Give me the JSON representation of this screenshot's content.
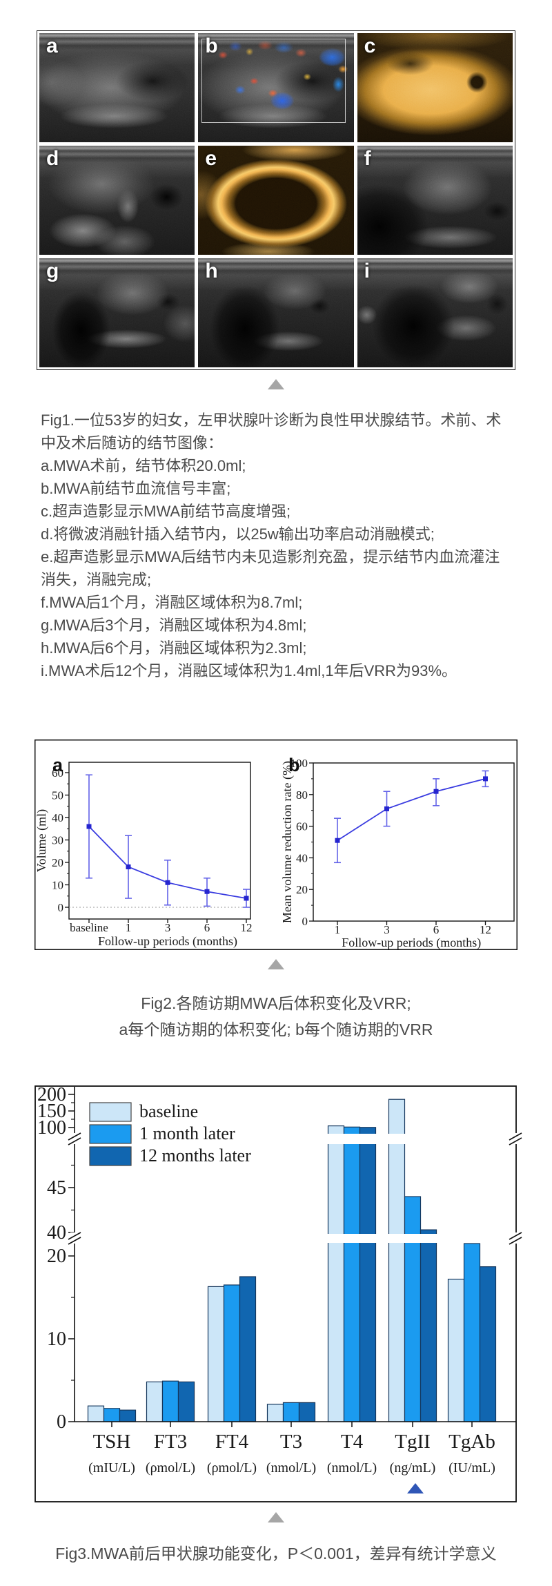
{
  "fig1": {
    "panels": [
      {
        "label": "a",
        "kind": "grayscale-ultrasound"
      },
      {
        "label": "b",
        "kind": "color-doppler-ultrasound"
      },
      {
        "label": "c",
        "kind": "contrast-enhanced-ultrasound-bright"
      },
      {
        "label": "d",
        "kind": "grayscale-ultrasound-ablation-needle"
      },
      {
        "label": "e",
        "kind": "contrast-enhanced-ultrasound-rim"
      },
      {
        "label": "f",
        "kind": "grayscale-ultrasound"
      },
      {
        "label": "g",
        "kind": "grayscale-ultrasound"
      },
      {
        "label": "h",
        "kind": "grayscale-ultrasound"
      },
      {
        "label": "i",
        "kind": "grayscale-ultrasound"
      }
    ],
    "caption_lines": [
      "Fig1.一位53岁的妇女，左甲状腺叶诊断为良性甲状腺结节。术前、术中及术后随访的结节图像：",
      "a.MWA术前，结节体积20.0ml;",
      "b.MWA前结节血流信号丰富;",
      "c.超声造影显示MWA前结节高度增强;",
      "d.将微波消融针插入结节内，以25w输出功率启动消融模式;",
      "e.超声造影显示MWA后结节内未见造影剂充盈，提示结节内血流灌注消失，消融完成;",
      "f.MWA后1个月，消融区域体积为8.7ml;",
      "g.MWA后3个月，消融区域体积为4.8ml;",
      "h.MWA后6个月，消融区域体积为2.3ml;",
      "i.MWA术后12个月，消融区域体积为1.4ml,1年后VRR为93%。"
    ]
  },
  "fig2": {
    "caption_lines": [
      "Fig2.各随访期MWA后体积变化及VRR;",
      "a每个随访期的体积变化; b每个随访期的VRR"
    ]
  },
  "fig3": {
    "caption": "Fig3.MWA前后甲状腺功能变化，P＜0.001，差异有统计学意义"
  },
  "separator": {
    "icon": "triangle-up",
    "color": "#a6a6a6"
  },
  "chart_data": [
    {
      "type": "line",
      "panel_label": "a",
      "title": "",
      "xlabel": "Follow-up periods (months)",
      "ylabel": "Volume (ml)",
      "categories": [
        "baseline",
        "1",
        "3",
        "6",
        "12"
      ],
      "values": [
        36,
        18,
        11,
        7,
        4
      ],
      "error_low": [
        13,
        4,
        1,
        0.5,
        0
      ],
      "error_high": [
        59,
        32,
        21,
        13,
        8
      ],
      "yticks": [
        0,
        10,
        20,
        30,
        40,
        50,
        60
      ],
      "yticks_minor": [
        5,
        15,
        25,
        35,
        45,
        55
      ],
      "ylim": [
        -5,
        65
      ],
      "zero_line": true,
      "line_color": "#3a3ce0",
      "error_color": "#6262e8",
      "marker_color": "#2525cf",
      "marker": "square"
    },
    {
      "type": "line",
      "panel_label": "b",
      "title": "",
      "xlabel": "Follow-up periods (months)",
      "ylabel": "Mean volume reduction rate (%)",
      "categories": [
        "1",
        "3",
        "6",
        "12"
      ],
      "values": [
        51,
        71,
        82,
        90
      ],
      "error_low": [
        37,
        60,
        73,
        85
      ],
      "error_high": [
        65,
        82,
        90,
        95
      ],
      "yticks": [
        0,
        20,
        40,
        60,
        80,
        100
      ],
      "yticks_minor": [
        10,
        30,
        50,
        70,
        90
      ],
      "ylim": [
        0,
        100
      ],
      "zero_line": false,
      "line_color": "#3a3ce0",
      "error_color": "#6262e8",
      "marker_color": "#2525cf",
      "marker": "square"
    },
    {
      "type": "bar",
      "broken_axis": true,
      "categories": [
        "TSH",
        "FT3",
        "FT4",
        "T3",
        "T4",
        "TgII",
        "TgAb"
      ],
      "category_units": [
        "(mIU/L)",
        "(ρmol/L)",
        "(ρmol/L)",
        "(nmol/L)",
        "(nmol/L)",
        "(ng/mL)",
        "(IU/mL)"
      ],
      "series": [
        {
          "name": "baseline",
          "color": "#cce6f8",
          "values": [
            1.9,
            4.8,
            16.3,
            2.1,
            105,
            185,
            17.2
          ]
        },
        {
          "name": "1 month later",
          "color": "#1b9bf0",
          "values": [
            1.6,
            4.9,
            16.5,
            2.3,
            101.5,
            44,
            21.5
          ]
        },
        {
          "name": "12 months later",
          "color": "#1166b0",
          "values": [
            1.4,
            4.8,
            17.5,
            2.3,
            100.5,
            40.3,
            18.7
          ]
        }
      ],
      "bar_border_color": "#14365c",
      "y_axis_segments": [
        {
          "ticks": [
            0,
            10,
            20
          ],
          "minor_ticks": [
            5,
            15
          ],
          "value_range": [
            0,
            21.6
          ]
        },
        {
          "ticks": [
            40,
            45
          ],
          "minor_ticks": [
            42.5,
            47.5
          ],
          "value_range": [
            39.5,
            49.8
          ]
        },
        {
          "ticks": [
            100,
            150,
            200
          ],
          "minor_ticks": [
            125,
            175
          ],
          "value_range": [
            100,
            207
          ]
        }
      ],
      "legend_position": "top-left",
      "significance_marker": {
        "category": "TgII",
        "color": "#2f56b6",
        "shape": "triangle-up"
      }
    }
  ]
}
